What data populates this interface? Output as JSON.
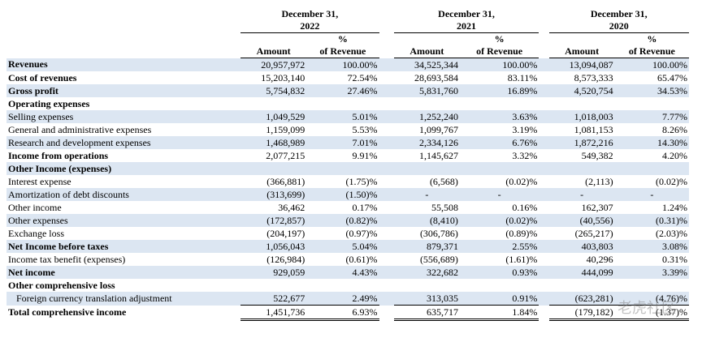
{
  "header": {
    "periods": [
      {
        "date": "December 31,",
        "year": "2022",
        "amount_header": "Amount",
        "pct_symbol": "%",
        "pct_header": "of Revenue"
      },
      {
        "date": "December 31,",
        "year": "2021",
        "amount_header": "Amount",
        "pct_symbol": "%",
        "pct_header": "of Revenue"
      },
      {
        "date": "December 31,",
        "year": "2020",
        "amount_header": "Amount",
        "pct_symbol": "%",
        "pct_header": "of Revenue"
      }
    ]
  },
  "table": {
    "rows": [
      {
        "label": "Revenues",
        "bold": true,
        "cells": [
          "20,957,972",
          "100.00%",
          "34,525,344",
          "100.00%",
          "13,094,087",
          "100.00%"
        ]
      },
      {
        "label": "Cost of revenues",
        "bold": true,
        "cells": [
          "15,203,140",
          "72.54%",
          "28,693,584",
          "83.11%",
          "8,573,333",
          "65.47%"
        ]
      },
      {
        "label": "Gross profit",
        "bold": true,
        "cells": [
          "5,754,832",
          "27.46%",
          "5,831,760",
          "16.89%",
          "4,520,754",
          "34.53%"
        ]
      },
      {
        "label": "Operating expenses",
        "bold": true,
        "cells": []
      },
      {
        "label": "Selling expenses",
        "cells": [
          "1,049,529",
          "5.01%",
          "1,252,240",
          "3.63%",
          "1,018,003",
          "7.77%"
        ]
      },
      {
        "label": "General and administrative expenses",
        "cells": [
          "1,159,099",
          "5.53%",
          "1,099,767",
          "3.19%",
          "1,081,153",
          "8.26%"
        ]
      },
      {
        "label": "Research and development expenses",
        "cells": [
          "1,468,989",
          "7.01%",
          "2,334,126",
          "6.76%",
          "1,872,216",
          "14.30%"
        ]
      },
      {
        "label": "Income from operations",
        "bold": true,
        "cells": [
          "2,077,215",
          "9.91%",
          "1,145,627",
          "3.32%",
          "549,382",
          "4.20%"
        ]
      },
      {
        "label": "Other Income (expenses)",
        "bold": true,
        "cells": []
      },
      {
        "label": "Interest expense",
        "cells": [
          "(366,881)",
          "(1.75)%",
          "(6,568)",
          "(0.02)%",
          "(2,113)",
          "(0.02)%"
        ]
      },
      {
        "label": "Amortization of debt discounts",
        "cells": [
          "(313,699)",
          "(1.50)%",
          "-",
          "-",
          "-",
          "-"
        ]
      },
      {
        "label": "Other income",
        "cells": [
          "36,462",
          "0.17%",
          "55,508",
          "0.16%",
          "162,307",
          "1.24%"
        ]
      },
      {
        "label": "Other expenses",
        "cells": [
          "(172,857)",
          "(0.82)%",
          "(8,410)",
          "(0.02)%",
          "(40,556)",
          "(0.31)%"
        ]
      },
      {
        "label": "Exchange loss",
        "cells": [
          "(204,197)",
          "(0.97)%",
          "(306,786)",
          "(0.89)%",
          "(265,217)",
          "(2.03)%"
        ]
      },
      {
        "label": "Net Income before taxes",
        "bold": true,
        "cells": [
          "1,056,043",
          "5.04%",
          "879,371",
          "2.55%",
          "403,803",
          "3.08%"
        ]
      },
      {
        "label": "Income tax benefit (expenses)",
        "cells": [
          "(126,984)",
          "(0.61)%",
          "(556,689)",
          "(1.61)%",
          "40,296",
          "0.31%"
        ]
      },
      {
        "label": "Net income",
        "bold": true,
        "cells": [
          "929,059",
          "4.43%",
          "322,682",
          "0.93%",
          "444,099",
          "3.39%"
        ]
      },
      {
        "label": "Other comprehensive loss",
        "bold": true,
        "cells": []
      },
      {
        "label": "Foreign currency translation adjustment",
        "indent": true,
        "cells": [
          "522,677",
          "2.49%",
          "313,035",
          "0.91%",
          "(623,281)",
          "(4.76)%"
        ]
      },
      {
        "label": "Total comprehensive income",
        "bold": true,
        "total": true,
        "cells": [
          "1,451,736",
          "6.93%",
          "635,717",
          "1.84%",
          "(179,182)",
          "(1.37)%"
        ]
      }
    ]
  },
  "watermark": "老虎社区"
}
